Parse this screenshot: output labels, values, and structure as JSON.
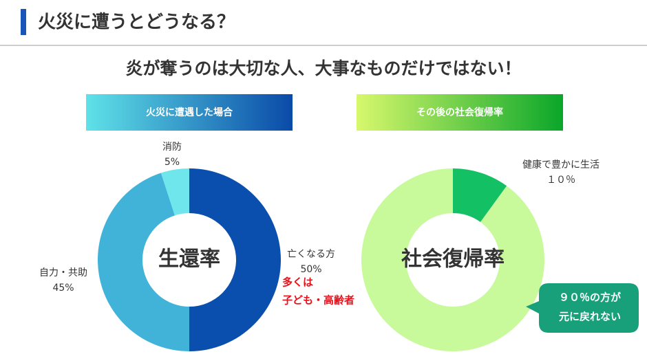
{
  "header": {
    "title": "火災に遭うとどうなる？",
    "subtitle": "炎が奪うのは大切な人、大事なものだけではない！"
  },
  "chart_data": [
    {
      "type": "donut",
      "title": "火災に遭遇した場合",
      "center_label": "生還率",
      "categories": [
        "亡くなる方",
        "自力・共助",
        "消防"
      ],
      "values": [
        50,
        45,
        5
      ],
      "value_labels": [
        "50%",
        "45%",
        "5%"
      ],
      "colors": [
        "#0a4fae",
        "#42b3d8",
        "#6ee6ec"
      ],
      "annotation": [
        "多くは",
        "子ども・高齢者"
      ]
    },
    {
      "type": "donut",
      "title": "その後の社会復帰率",
      "center_label": "社会復帰率",
      "categories": [
        "健康で豊かに生活",
        null
      ],
      "values": [
        10,
        90
      ],
      "value_labels": [
        "１０％",
        null
      ],
      "colors": [
        "#14c064",
        "#c8fa9c"
      ],
      "annotation": [
        "９０％の方が",
        "元に戻れない"
      ]
    }
  ]
}
